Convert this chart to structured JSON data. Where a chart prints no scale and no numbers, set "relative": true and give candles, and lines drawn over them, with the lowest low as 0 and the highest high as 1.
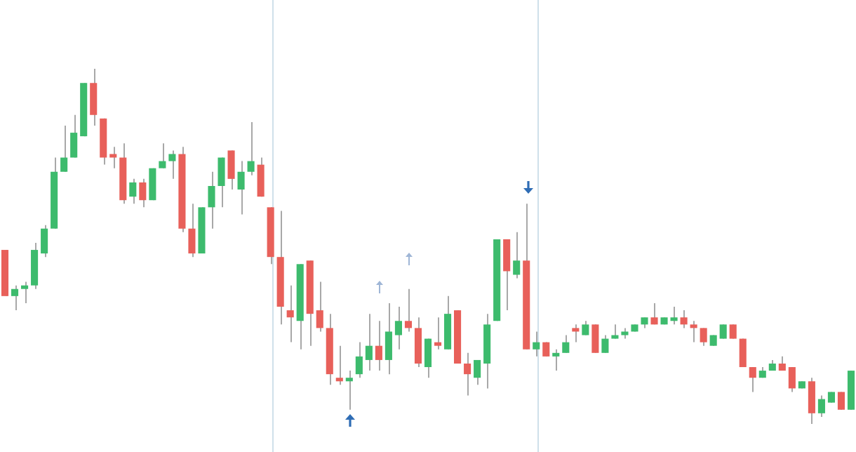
{
  "chart_data": {
    "type": "candlestick",
    "relative": true,
    "legend": false,
    "categories": [
      null,
      null,
      null,
      null,
      null,
      null,
      null,
      null,
      null,
      null,
      null,
      null,
      null,
      null,
      null,
      null,
      null,
      null,
      null,
      null,
      null,
      null,
      null,
      null,
      null,
      null,
      null,
      null,
      null,
      null,
      null,
      null,
      null,
      null,
      null,
      null,
      null,
      null,
      null,
      null,
      null,
      null,
      null,
      null,
      null,
      null,
      null,
      null,
      null,
      null,
      null,
      null,
      null,
      null,
      null,
      null,
      null,
      null,
      null,
      null,
      null,
      null,
      null,
      null,
      null,
      null,
      null,
      null,
      null,
      null,
      null,
      null,
      null,
      null,
      null,
      null,
      null,
      null,
      null,
      null,
      null,
      null,
      null,
      null,
      null,
      null,
      null
    ],
    "ohlc": [
      [
        0.49,
        0.49,
        0.36,
        0.36
      ],
      [
        0.36,
        0.39,
        0.32,
        0.38
      ],
      [
        0.38,
        0.4,
        0.34,
        0.39
      ],
      [
        0.39,
        0.51,
        0.38,
        0.49
      ],
      [
        0.48,
        0.56,
        0.47,
        0.55
      ],
      [
        0.55,
        0.75,
        0.55,
        0.71
      ],
      [
        0.71,
        0.84,
        0.71,
        0.75
      ],
      [
        0.75,
        0.87,
        0.75,
        0.82
      ],
      [
        0.81,
        0.96,
        0.81,
        0.96
      ],
      [
        0.96,
        1,
        0.84,
        0.87
      ],
      [
        0.86,
        0.86,
        0.73,
        0.75
      ],
      [
        0.76,
        0.78,
        0.72,
        0.75
      ],
      [
        0.75,
        0.79,
        0.62,
        0.63
      ],
      [
        0.64,
        0.69,
        0.62,
        0.68
      ],
      [
        0.68,
        0.69,
        0.61,
        0.63
      ],
      [
        0.63,
        0.72,
        0.63,
        0.72
      ],
      [
        0.72,
        0.79,
        0.72,
        0.74
      ],
      [
        0.74,
        0.77,
        0.69,
        0.76
      ],
      [
        0.76,
        0.78,
        0.54,
        0.55
      ],
      [
        0.55,
        0.62,
        0.47,
        0.48
      ],
      [
        0.48,
        0.61,
        0.48,
        0.61
      ],
      [
        0.61,
        0.71,
        0.55,
        0.67
      ],
      [
        0.67,
        0.75,
        0.61,
        0.75
      ],
      [
        0.77,
        0.77,
        0.66,
        0.69
      ],
      [
        0.66,
        0.74,
        0.59,
        0.71
      ],
      [
        0.71,
        0.85,
        0.7,
        0.74
      ],
      [
        0.73,
        0.75,
        0.64,
        0.64
      ],
      [
        0.61,
        0.61,
        0.45,
        0.47
      ],
      [
        0.47,
        0.6,
        0.28,
        0.33
      ],
      [
        0.32,
        0.39,
        0.23,
        0.3
      ],
      [
        0.29,
        0.45,
        0.21,
        0.45
      ],
      [
        0.46,
        0.46,
        0.22,
        0.31
      ],
      [
        0.32,
        0.4,
        0.26,
        0.27
      ],
      [
        0.27,
        0.31,
        0.11,
        0.14
      ],
      [
        0.13,
        0.22,
        0.11,
        0.12
      ],
      [
        0.12,
        0.15,
        0.04,
        0.13
      ],
      [
        0.14,
        0.23,
        0.13,
        0.19
      ],
      [
        0.18,
        0.31,
        0.15,
        0.22
      ],
      [
        0.22,
        0.29,
        0.15,
        0.18
      ],
      [
        0.18,
        0.34,
        0.14,
        0.26
      ],
      [
        0.25,
        0.33,
        0.21,
        0.29
      ],
      [
        0.29,
        0.38,
        0.26,
        0.27
      ],
      [
        0.27,
        0.3,
        0.16,
        0.17
      ],
      [
        0.16,
        0.24,
        0.13,
        0.24
      ],
      [
        0.23,
        0.3,
        0.21,
        0.22
      ],
      [
        0.21,
        0.36,
        0.21,
        0.31
      ],
      [
        0.32,
        0.32,
        0.17,
        0.17
      ],
      [
        0.17,
        0.2,
        0.08,
        0.14
      ],
      [
        0.13,
        0.18,
        0.11,
        0.18
      ],
      [
        0.17,
        0.31,
        0.1,
        0.28
      ],
      [
        0.29,
        0.52,
        0.29,
        0.52
      ],
      [
        0.52,
        0.52,
        0.32,
        0.43
      ],
      [
        0.42,
        0.54,
        0.41,
        0.46
      ],
      [
        0.46,
        0.62,
        0.21,
        0.21
      ],
      [
        0.21,
        0.26,
        0.19,
        0.23
      ],
      [
        0.23,
        0.23,
        0.19,
        0.19
      ],
      [
        0.19,
        0.21,
        0.15,
        0.2
      ],
      [
        0.2,
        0.25,
        0.2,
        0.23
      ],
      [
        0.27,
        0.28,
        0.23,
        0.26
      ],
      [
        0.25,
        0.29,
        0.25,
        0.28
      ],
      [
        0.28,
        0.28,
        0.2,
        0.2
      ],
      [
        0.2,
        0.25,
        0.2,
        0.24
      ],
      [
        0.24,
        0.28,
        0.24,
        0.25
      ],
      [
        0.25,
        0.27,
        0.24,
        0.26
      ],
      [
        0.26,
        0.28,
        0.26,
        0.28
      ],
      [
        0.28,
        0.3,
        0.27,
        0.3
      ],
      [
        0.3,
        0.34,
        0.28,
        0.28
      ],
      [
        0.28,
        0.3,
        0.28,
        0.3
      ],
      [
        0.29,
        0.33,
        0.28,
        0.3
      ],
      [
        0.3,
        0.32,
        0.27,
        0.28
      ],
      [
        0.28,
        0.29,
        0.23,
        0.27
      ],
      [
        0.27,
        0.27,
        0.22,
        0.23
      ],
      [
        0.22,
        0.25,
        0.22,
        0.25
      ],
      [
        0.24,
        0.28,
        0.24,
        0.28
      ],
      [
        0.28,
        0.28,
        0.24,
        0.24
      ],
      [
        0.24,
        0.24,
        0.16,
        0.16
      ],
      [
        0.16,
        0.16,
        0.09,
        0.13
      ],
      [
        0.13,
        0.16,
        0.13,
        0.15
      ],
      [
        0.15,
        0.18,
        0.15,
        0.17
      ],
      [
        0.17,
        0.19,
        0.15,
        0.15
      ],
      [
        0.16,
        0.16,
        0.09,
        0.1
      ],
      [
        0.1,
        0.12,
        0.1,
        0.12
      ],
      [
        0.12,
        0.13,
        0,
        0.03
      ],
      [
        0.03,
        0.08,
        0.02,
        0.07
      ],
      [
        0.06,
        0.09,
        0.06,
        0.09
      ],
      [
        0.09,
        0.09,
        0.04,
        0.04
      ],
      [
        0.04,
        0.15,
        0.04,
        0.15
      ]
    ],
    "colors": [
      "#e8605a",
      "#3dbb6d",
      "#3dbb6d",
      "#3dbb6d",
      "#3dbb6d",
      "#3dbb6d",
      "#3dbb6d",
      "#3dbb6d",
      "#3dbb6d",
      "#e8605a",
      "#e8605a",
      "#e8605a",
      "#e8605a",
      "#3dbb6d",
      "#e8605a",
      "#3dbb6d",
      "#3dbb6d",
      "#3dbb6d",
      "#e8605a",
      "#e8605a",
      "#3dbb6d",
      "#3dbb6d",
      "#3dbb6d",
      "#e8605a",
      "#3dbb6d",
      "#3dbb6d",
      "#e8605a",
      "#e8605a",
      "#e8605a",
      "#e8605a",
      "#3dbb6d",
      "#e8605a",
      "#e8605a",
      "#e8605a",
      "#e8605a",
      "#3dbb6d",
      "#3dbb6d",
      "#3dbb6d",
      "#e8605a",
      "#3dbb6d",
      "#3dbb6d",
      "#e8605a",
      "#e8605a",
      "#3dbb6d",
      "#e8605a",
      "#3dbb6d",
      "#e8605a",
      "#e8605a",
      "#3dbb6d",
      "#3dbb6d",
      "#3dbb6d",
      "#e8605a",
      "#3dbb6d",
      "#e8605a",
      "#3dbb6d",
      "#e8605a",
      "#3dbb6d",
      "#3dbb6d",
      "#e8605a",
      "#3dbb6d",
      "#e8605a",
      "#3dbb6d",
      "#3dbb6d",
      "#3dbb6d",
      "#3dbb6d",
      "#3dbb6d",
      "#e8605a",
      "#3dbb6d",
      "#3dbb6d",
      "#e8605a",
      "#e8605a",
      "#e8605a",
      "#3dbb6d",
      "#3dbb6d",
      "#e8605a",
      "#e8605a",
      "#e8605a",
      "#3dbb6d",
      "#3dbb6d",
      "#e8605a",
      "#e8605a",
      "#3dbb6d",
      "#e8605a",
      "#3dbb6d",
      "#3dbb6d",
      "#e8605a",
      "#3dbb6d"
    ]
  }
}
